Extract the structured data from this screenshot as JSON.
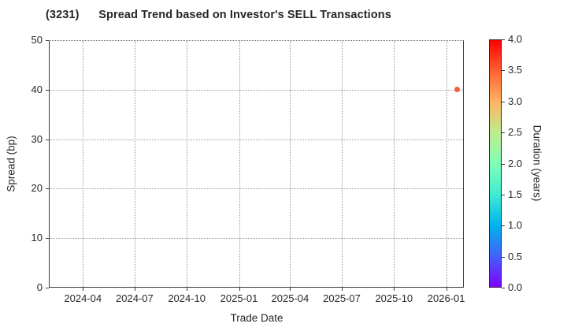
{
  "chart_data": {
    "type": "scatter",
    "title": "(3231)      Spread Trend based on Investor's SELL Transactions",
    "xlabel": "Trade Date",
    "ylabel": "Spread (bp)",
    "x_domain": [
      "2024-02-01",
      "2026-02-01"
    ],
    "x_ticks": [
      {
        "label": "2024-04",
        "date": "2024-04-01"
      },
      {
        "label": "2024-07",
        "date": "2024-07-01"
      },
      {
        "label": "2024-10",
        "date": "2024-10-01"
      },
      {
        "label": "2025-01",
        "date": "2025-01-01"
      },
      {
        "label": "2025-04",
        "date": "2025-04-01"
      },
      {
        "label": "2025-07",
        "date": "2025-07-01"
      },
      {
        "label": "2025-10",
        "date": "2025-10-01"
      },
      {
        "label": "2026-01",
        "date": "2026-01-01"
      }
    ],
    "ylim": [
      0,
      50
    ],
    "y_ticks": [
      0,
      10,
      20,
      30,
      40,
      50
    ],
    "grid": true,
    "grid_style": "dotted",
    "series": [
      {
        "name": "Investor SELL transactions",
        "points": [
          {
            "trade_date": "2026-01-20",
            "spread_bp": 40,
            "duration_years": 3.4
          }
        ]
      }
    ],
    "point_color": "#f2603c",
    "colorbar": {
      "label": "Duration (years)",
      "min": 0.0,
      "max": 4.0,
      "tick_labels": [
        "0.0",
        "0.5",
        "1.0",
        "1.5",
        "2.0",
        "2.5",
        "3.0",
        "3.5",
        "4.0"
      ],
      "colormap": "rainbow",
      "gradient_stops_bottom_to_top": [
        "#8000ff",
        "#4062fa",
        "#00b4ec",
        "#40ecd4",
        "#80ffb4",
        "#bfec8e",
        "#ffb462",
        "#ff6232",
        "#ff0000"
      ]
    },
    "colors": {
      "spine": "#3a3a3a",
      "grid": "#999999",
      "text": "#262626",
      "background": "#ffffff"
    }
  }
}
